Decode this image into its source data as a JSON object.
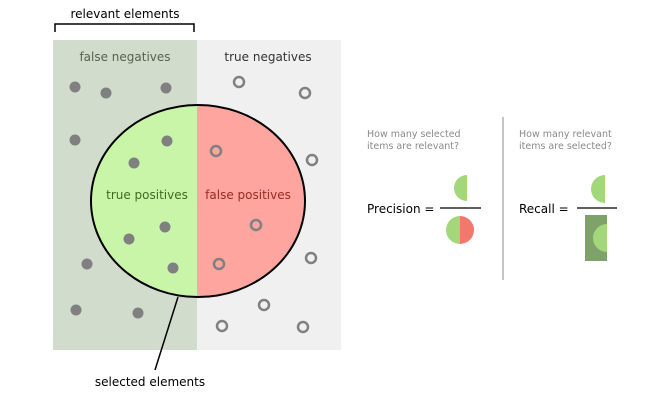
{
  "labels": {
    "relevant_elements": "relevant elements",
    "false_negatives": "false negatives",
    "true_negatives": "true negatives",
    "true_positives": "true positives",
    "false_positives": "false positives",
    "selected_elements": "selected elements"
  },
  "precision": {
    "question_line1": "How many selected",
    "question_line2": "items are relevant?",
    "label": "Precision ="
  },
  "recall": {
    "question_line1": "How many relevant",
    "question_line2": "items are selected?",
    "label": "Recall ="
  },
  "colors": {
    "relevant_bg": "#d2dccc",
    "irrelevant_bg": "#f0f0f0",
    "true_positive": "#c8f5a8",
    "false_positive": "#fda59e",
    "dot": "#808080",
    "icon_green": "#a3d87a",
    "icon_red": "#f2786e",
    "recall_dark": "#7fa26a"
  }
}
